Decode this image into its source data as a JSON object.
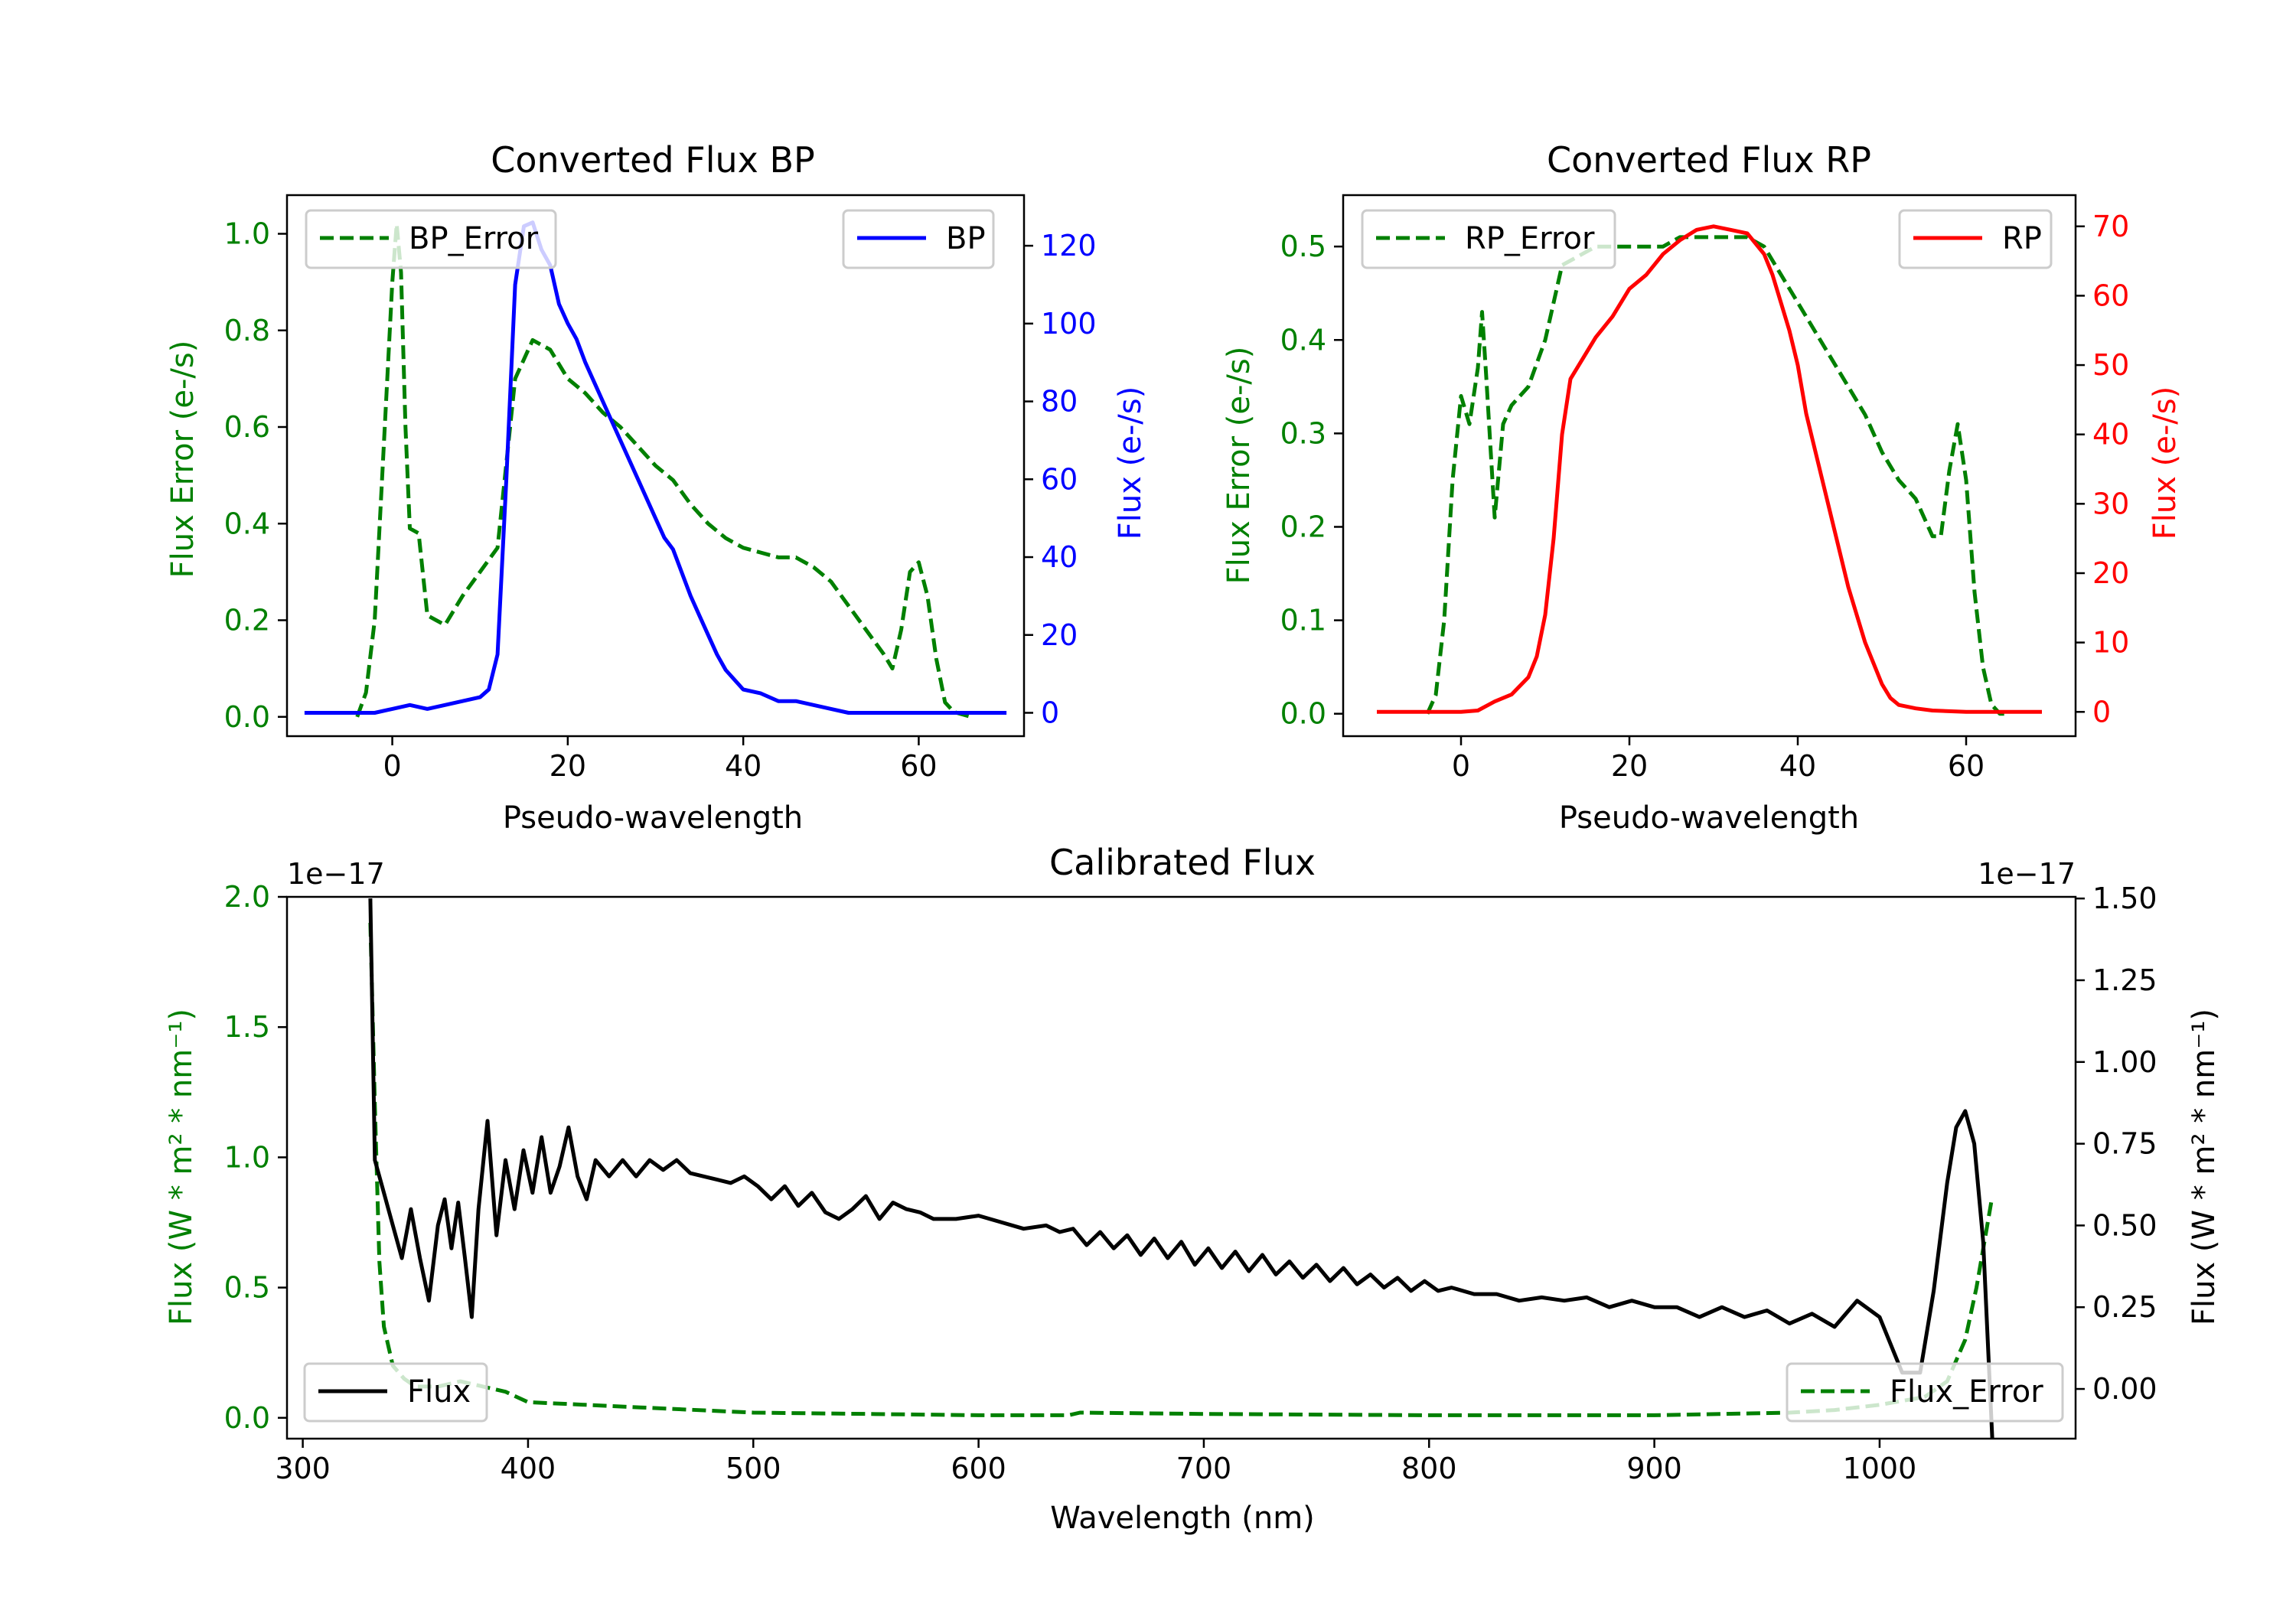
{
  "colors": {
    "green": "#008000",
    "blue": "#0000ff",
    "red": "#ff0000",
    "black": "#000000"
  },
  "chart_data": [
    {
      "id": "bp",
      "type": "line",
      "title": "Converted Flux BP",
      "xlabel": "Pseudo-wavelength",
      "ylabel_left": "Flux Error (e-/s)",
      "ylabel_right": "Flux (e-/s)",
      "xlim": [
        -12,
        72
      ],
      "ylim_left": [
        -0.04,
        1.08
      ],
      "ylim_right": [
        -6,
        133
      ],
      "xticks": [
        0,
        20,
        40,
        60
      ],
      "yticks_left": [
        0.0,
        0.2,
        0.4,
        0.6,
        0.8,
        1.0
      ],
      "yticks_right": [
        0,
        20,
        40,
        60,
        80,
        100,
        120
      ],
      "series": [
        {
          "name": "BP_Error",
          "axis": "left",
          "style": "dashed",
          "color": "#008000",
          "legend": "upper left",
          "x": [
            -4,
            -3,
            -2,
            -1,
            0,
            0.5,
            1,
            1.5,
            2,
            3,
            4,
            5,
            6,
            8,
            10,
            12,
            14,
            16,
            18,
            20,
            22,
            24,
            26,
            28,
            30,
            32,
            34,
            36,
            38,
            40,
            42,
            44,
            46,
            48,
            50,
            52,
            54,
            56,
            57,
            58,
            59,
            60,
            61,
            62,
            63,
            64,
            66
          ],
          "y": [
            0.0,
            0.05,
            0.2,
            0.55,
            0.9,
            1.02,
            0.92,
            0.6,
            0.39,
            0.38,
            0.21,
            0.2,
            0.19,
            0.25,
            0.3,
            0.35,
            0.7,
            0.78,
            0.76,
            0.7,
            0.67,
            0.63,
            0.6,
            0.56,
            0.52,
            0.49,
            0.44,
            0.4,
            0.37,
            0.35,
            0.34,
            0.33,
            0.33,
            0.31,
            0.28,
            0.23,
            0.18,
            0.13,
            0.1,
            0.18,
            0.3,
            0.32,
            0.25,
            0.12,
            0.03,
            0.01,
            0.0
          ]
        },
        {
          "name": "BP",
          "axis": "right",
          "style": "solid",
          "color": "#0000ff",
          "legend": "upper right",
          "x": [
            -10,
            -6,
            -2,
            0,
            2,
            4,
            6,
            8,
            10,
            11,
            12,
            13,
            14,
            15,
            16,
            17,
            18,
            19,
            20,
            21,
            22,
            24,
            26,
            28,
            30,
            31,
            32,
            33,
            34,
            35,
            36,
            37,
            38,
            40,
            42,
            44,
            46,
            48,
            50,
            52,
            54,
            56,
            58,
            60,
            62,
            64,
            66,
            68,
            70
          ],
          "y": [
            0,
            0,
            0,
            1,
            2,
            1,
            2,
            3,
            4,
            6,
            15,
            60,
            110,
            125,
            126,
            119,
            115,
            105,
            100,
            96,
            90,
            80,
            70,
            60,
            50,
            45,
            42,
            36,
            30,
            25,
            20,
            15,
            11,
            6,
            5,
            3,
            3,
            2,
            1,
            0,
            0,
            0,
            0,
            0,
            0,
            0,
            0,
            0,
            0
          ]
        }
      ]
    },
    {
      "id": "rp",
      "type": "line",
      "title": "Converted Flux RP",
      "xlabel": "Pseudo-wavelength",
      "ylabel_left": "Flux Error (e-/s)",
      "ylabel_right": "Flux (e-/s)",
      "xlim": [
        -14,
        73
      ],
      "ylim_left": [
        -0.024,
        0.555
      ],
      "ylim_right": [
        -3.5,
        74.5
      ],
      "xticks": [
        0,
        20,
        40,
        60
      ],
      "yticks_left": [
        0.0,
        0.1,
        0.2,
        0.3,
        0.4,
        0.5
      ],
      "yticks_right": [
        0,
        10,
        20,
        30,
        40,
        50,
        60,
        70
      ],
      "series": [
        {
          "name": "RP_Error",
          "axis": "left",
          "style": "dashed",
          "color": "#008000",
          "legend": "upper left",
          "x": [
            -4,
            -3,
            -2,
            -1,
            0,
            1,
            2,
            2.5,
            3,
            4,
            5,
            6,
            8,
            10,
            12,
            14,
            16,
            18,
            20,
            22,
            24,
            26,
            28,
            30,
            32,
            34,
            36,
            38,
            40,
            42,
            44,
            46,
            48,
            50,
            52,
            54,
            56,
            57,
            58,
            59,
            60,
            61,
            62,
            63,
            64,
            65
          ],
          "y": [
            0.0,
            0.02,
            0.1,
            0.25,
            0.34,
            0.31,
            0.37,
            0.43,
            0.36,
            0.21,
            0.31,
            0.33,
            0.35,
            0.4,
            0.48,
            0.49,
            0.5,
            0.5,
            0.5,
            0.5,
            0.5,
            0.51,
            0.51,
            0.51,
            0.51,
            0.51,
            0.5,
            0.47,
            0.44,
            0.41,
            0.38,
            0.35,
            0.32,
            0.28,
            0.25,
            0.23,
            0.19,
            0.19,
            0.26,
            0.31,
            0.25,
            0.13,
            0.05,
            0.01,
            0.0,
            0.0
          ]
        },
        {
          "name": "RP",
          "axis": "right",
          "style": "solid",
          "color": "#ff0000",
          "legend": "upper right",
          "x": [
            -10,
            -4,
            0,
            2,
            4,
            6,
            8,
            9,
            10,
            11,
            12,
            13,
            14,
            15,
            16,
            18,
            20,
            22,
            24,
            26,
            28,
            30,
            32,
            34,
            36,
            37,
            38,
            39,
            40,
            41,
            42,
            44,
            46,
            48,
            50,
            51,
            52,
            54,
            56,
            60,
            64,
            69
          ],
          "y": [
            0,
            0,
            0,
            0.2,
            1.5,
            2.5,
            5,
            8,
            14,
            25,
            40,
            48,
            50,
            52,
            54,
            57,
            61,
            63,
            66,
            68,
            69.5,
            70,
            69.5,
            69,
            66,
            63,
            59,
            55,
            50,
            43,
            38,
            28,
            18,
            10,
            4,
            2,
            1,
            0.5,
            0.2,
            0,
            0,
            0
          ]
        }
      ]
    },
    {
      "id": "calibrated",
      "type": "line",
      "title": "Calibrated Flux",
      "xlabel": "Wavelength (nm)",
      "ylabel_left": "Flux (W * m² * nm⁻¹)",
      "ylabel_right": "Flux (W * m² * nm⁻¹)",
      "offset_left": "1e−17",
      "offset_right": "1e−17",
      "xlim": [
        293,
        1087
      ],
      "ylim_left": [
        -0.08,
        2.0
      ],
      "ylim_right": [
        -0.152,
        1.505
      ],
      "xticks": [
        300,
        400,
        500,
        600,
        700,
        800,
        900,
        1000
      ],
      "yticks_left": [
        0.0,
        0.5,
        1.0,
        1.5,
        2.0
      ],
      "yticks_right": [
        0.0,
        0.25,
        0.5,
        0.75,
        1.0,
        1.25,
        1.5
      ],
      "series": [
        {
          "name": "Flux_Error",
          "axis": "left",
          "style": "dashed",
          "color": "#008000",
          "legend": "lower right",
          "x": [
            330,
            332,
            334,
            336,
            340,
            345,
            350,
            360,
            370,
            380,
            390,
            400,
            450,
            500,
            600,
            640,
            645,
            700,
            800,
            900,
            960,
            980,
            1000,
            1020,
            1030,
            1038,
            1043,
            1047,
            1050
          ],
          "y": [
            1.9,
            1.2,
            0.6,
            0.35,
            0.2,
            0.15,
            0.12,
            0.12,
            0.14,
            0.12,
            0.1,
            0.06,
            0.04,
            0.02,
            0.01,
            0.01,
            0.02,
            0.015,
            0.01,
            0.01,
            0.02,
            0.03,
            0.05,
            0.08,
            0.14,
            0.3,
            0.5,
            0.7,
            0.85
          ]
        },
        {
          "name": "Flux",
          "axis": "right",
          "style": "solid",
          "color": "#000000",
          "legend": "lower left",
          "x": [
            330,
            332,
            334,
            336,
            340,
            344,
            348,
            352,
            356,
            360,
            363,
            366,
            369,
            372,
            375,
            378,
            382,
            386,
            390,
            394,
            398,
            402,
            406,
            410,
            414,
            418,
            422,
            426,
            430,
            436,
            442,
            448,
            454,
            460,
            466,
            472,
            478,
            484,
            490,
            496,
            502,
            508,
            514,
            520,
            526,
            532,
            538,
            544,
            550,
            556,
            562,
            568,
            574,
            580,
            590,
            600,
            610,
            620,
            630,
            636,
            642,
            648,
            654,
            660,
            666,
            672,
            678,
            684,
            690,
            696,
            702,
            708,
            714,
            720,
            726,
            732,
            738,
            744,
            750,
            756,
            762,
            768,
            774,
            780,
            786,
            792,
            798,
            804,
            810,
            820,
            830,
            840,
            850,
            860,
            870,
            880,
            890,
            900,
            910,
            920,
            930,
            940,
            950,
            960,
            970,
            980,
            990,
            1000,
            1010,
            1018,
            1024,
            1030,
            1034,
            1038,
            1042,
            1046,
            1050
          ],
          "y": [
            1.5,
            0.7,
            0.65,
            0.6,
            0.5,
            0.4,
            0.55,
            0.4,
            0.27,
            0.5,
            0.58,
            0.43,
            0.57,
            0.4,
            0.22,
            0.55,
            0.82,
            0.47,
            0.7,
            0.55,
            0.73,
            0.6,
            0.77,
            0.6,
            0.68,
            0.8,
            0.65,
            0.58,
            0.7,
            0.65,
            0.7,
            0.65,
            0.7,
            0.67,
            0.7,
            0.66,
            0.65,
            0.64,
            0.63,
            0.65,
            0.62,
            0.58,
            0.62,
            0.56,
            0.6,
            0.54,
            0.52,
            0.55,
            0.59,
            0.52,
            0.57,
            0.55,
            0.54,
            0.52,
            0.52,
            0.53,
            0.51,
            0.49,
            0.5,
            0.48,
            0.49,
            0.44,
            0.48,
            0.43,
            0.47,
            0.41,
            0.46,
            0.4,
            0.45,
            0.38,
            0.43,
            0.37,
            0.42,
            0.36,
            0.41,
            0.35,
            0.39,
            0.34,
            0.38,
            0.33,
            0.37,
            0.32,
            0.35,
            0.31,
            0.34,
            0.3,
            0.33,
            0.3,
            0.31,
            0.29,
            0.29,
            0.27,
            0.28,
            0.27,
            0.28,
            0.25,
            0.27,
            0.25,
            0.25,
            0.22,
            0.25,
            0.22,
            0.24,
            0.2,
            0.23,
            0.19,
            0.27,
            0.22,
            0.05,
            0.05,
            0.3,
            0.63,
            0.8,
            0.85,
            0.75,
            0.45,
            -0.15
          ]
        }
      ]
    }
  ]
}
